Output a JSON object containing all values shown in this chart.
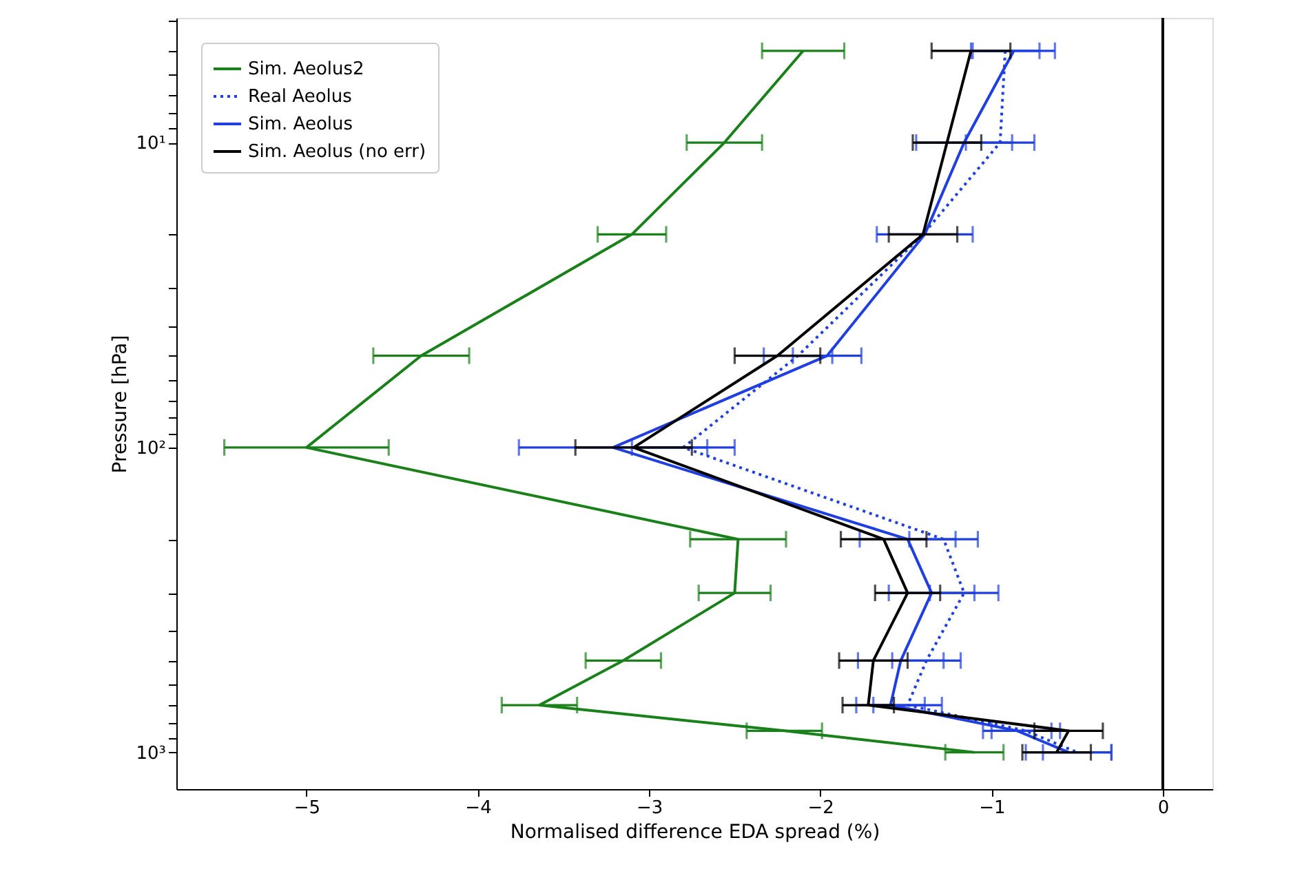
{
  "chart_data": {
    "type": "line",
    "orientation": "horizontal",
    "xlabel": "Normalised difference EDA spread (%)",
    "ylabel": "Pressure [hPa]",
    "x": [
      5,
      10,
      20,
      50,
      100,
      200,
      300,
      500,
      700,
      850,
      1000
    ],
    "series": [
      {
        "name": "Sim. Aeolus2",
        "color": "#1a801a",
        "line_style": "solid",
        "values": [
          -2.1,
          -2.56,
          -3.1,
          -4.33,
          -5.0,
          -2.48,
          -2.5,
          -3.15,
          -3.64,
          -2.21,
          -1.1
        ],
        "errors": [
          0.24,
          0.22,
          0.2,
          0.28,
          0.48,
          0.28,
          0.21,
          0.22,
          0.22,
          0.22,
          0.17
        ]
      },
      {
        "name": "Real Aeolus",
        "color": "#1f3fe0",
        "line_style": "dotted",
        "values": [
          -0.92,
          -0.95,
          -1.4,
          -2.13,
          -2.8,
          -1.28,
          -1.16,
          -1.38,
          -1.49,
          -0.8,
          -0.5
        ],
        "errors": [
          0.2,
          0.2,
          null,
          0.2,
          0.3,
          0.2,
          0.2,
          0.2,
          0.2,
          0.2,
          0.2
        ]
      },
      {
        "name": "Sim. Aeolus",
        "color": "#1f3fe0",
        "line_style": "solid",
        "values": [
          -0.87,
          -1.16,
          -1.39,
          -1.96,
          -3.21,
          -1.49,
          -1.35,
          -1.53,
          -1.59,
          -0.85,
          -0.55
        ],
        "errors": [
          0.24,
          0.28,
          0.28,
          0.2,
          0.55,
          0.28,
          0.25,
          0.25,
          0.2,
          0.2,
          0.25
        ]
      },
      {
        "name": "Sim. Aeolus (no err)",
        "color": "#000000",
        "line_style": "solid",
        "values": [
          -1.12,
          -1.26,
          -1.4,
          -2.25,
          -3.09,
          -1.63,
          -1.49,
          -1.69,
          -1.72,
          -0.55,
          -0.62
        ],
        "errors": [
          0.23,
          0.2,
          0.2,
          0.25,
          0.34,
          0.25,
          0.19,
          0.2,
          0.15,
          0.2,
          0.2
        ]
      }
    ],
    "xlim": [
      -5.76,
      0.29
    ],
    "xticks": [
      {
        "value": -5,
        "label": "−5"
      },
      {
        "value": -4,
        "label": "−4"
      },
      {
        "value": -3,
        "label": "−3"
      },
      {
        "value": -2,
        "label": "−2"
      },
      {
        "value": -1,
        "label": "−1"
      },
      0
    ],
    "ylim": [
      1320,
      3.9
    ],
    "log": "y",
    "yticks": [
      {
        "value": 4,
        "label": null
      },
      {
        "value": 5,
        "label": null
      },
      {
        "value": 6,
        "label": null
      },
      {
        "value": 7,
        "label": null
      },
      {
        "value": 8,
        "label": null
      },
      {
        "value": 9,
        "label": null
      },
      {
        "value": 10,
        "label": "10¹"
      },
      {
        "value": 20,
        "label": null
      },
      {
        "value": 30,
        "label": null
      },
      {
        "value": 40,
        "label": null
      },
      {
        "value": 50,
        "label": null
      },
      {
        "value": 60,
        "label": null
      },
      {
        "value": 70,
        "label": null
      },
      {
        "value": 80,
        "label": null
      },
      {
        "value": 90,
        "label": null
      },
      {
        "value": 100,
        "label": "10²"
      },
      {
        "value": 200,
        "label": null
      },
      {
        "value": 300,
        "label": null
      },
      {
        "value": 400,
        "label": null
      },
      {
        "value": 500,
        "label": null
      },
      {
        "value": 600,
        "label": null
      },
      {
        "value": 700,
        "label": null
      },
      {
        "value": 800,
        "label": null
      },
      {
        "value": 900,
        "label": null
      },
      {
        "value": 1000,
        "label": "10³"
      }
    ],
    "ref_lines": [
      {
        "axis": "x",
        "value": 0,
        "color": "#000000"
      }
    ],
    "legend": "top left",
    "grid": false,
    "marker": "none"
  }
}
